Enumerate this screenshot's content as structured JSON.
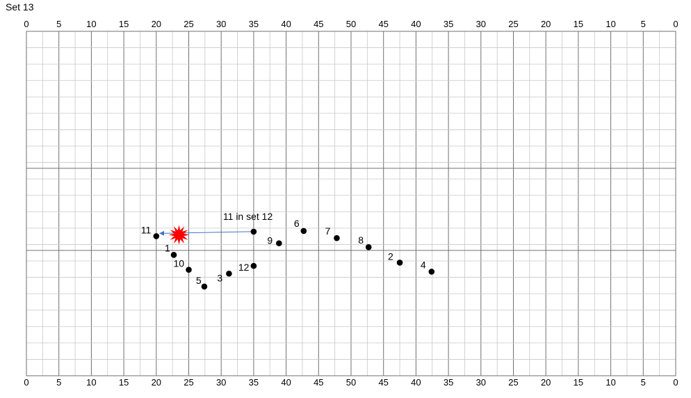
{
  "title": "Set 13",
  "top_tick_labels": [
    "0",
    "5",
    "10",
    "15",
    "20",
    "25",
    "30",
    "35",
    "40",
    "45",
    "50",
    "45",
    "40",
    "35",
    "30",
    "25",
    "20",
    "15",
    "10",
    "5",
    "0"
  ],
  "bottom_tick_labels": [
    "0",
    "5",
    "10",
    "15",
    "20",
    "25",
    "30",
    "35",
    "40",
    "45",
    "50",
    "45",
    "40",
    "35",
    "30",
    "25",
    "20",
    "15",
    "10",
    "5",
    "0"
  ],
  "points": [
    {
      "label": "1",
      "x": 22.7,
      "y": 18.7
    },
    {
      "label": "2",
      "x": 57.5,
      "y": 17.5
    },
    {
      "label": "3",
      "x": 31.2,
      "y": 15.8
    },
    {
      "label": "4",
      "x": 62.4,
      "y": 16.1
    },
    {
      "label": "5",
      "x": 27.4,
      "y": 13.8
    },
    {
      "label": "6",
      "x": 42.7,
      "y": 22.4
    },
    {
      "label": "7",
      "x": 47.8,
      "y": 21.3
    },
    {
      "label": "8",
      "x": 52.7,
      "y": 19.9
    },
    {
      "label": "9",
      "x": 38.9,
      "y": 20.5
    },
    {
      "label": "10",
      "x": 25.0,
      "y": 16.4
    },
    {
      "label": "11",
      "x": 20.0,
      "y": 21.6
    },
    {
      "label": "12",
      "x": 35.0,
      "y": 17.0
    }
  ],
  "reference_point": {
    "label": "11 in set 12",
    "x": 35.0,
    "y": 22.3
  },
  "arrow": {
    "from": "11 in set 12",
    "to": "11",
    "color": "#4472c4"
  },
  "burst": {
    "x": 23.5,
    "y": 21.8,
    "color": "#ff0000"
  },
  "colors": {
    "grid_minor": "#c8c8c8",
    "grid_major": "#707070",
    "point": "#000000"
  }
}
